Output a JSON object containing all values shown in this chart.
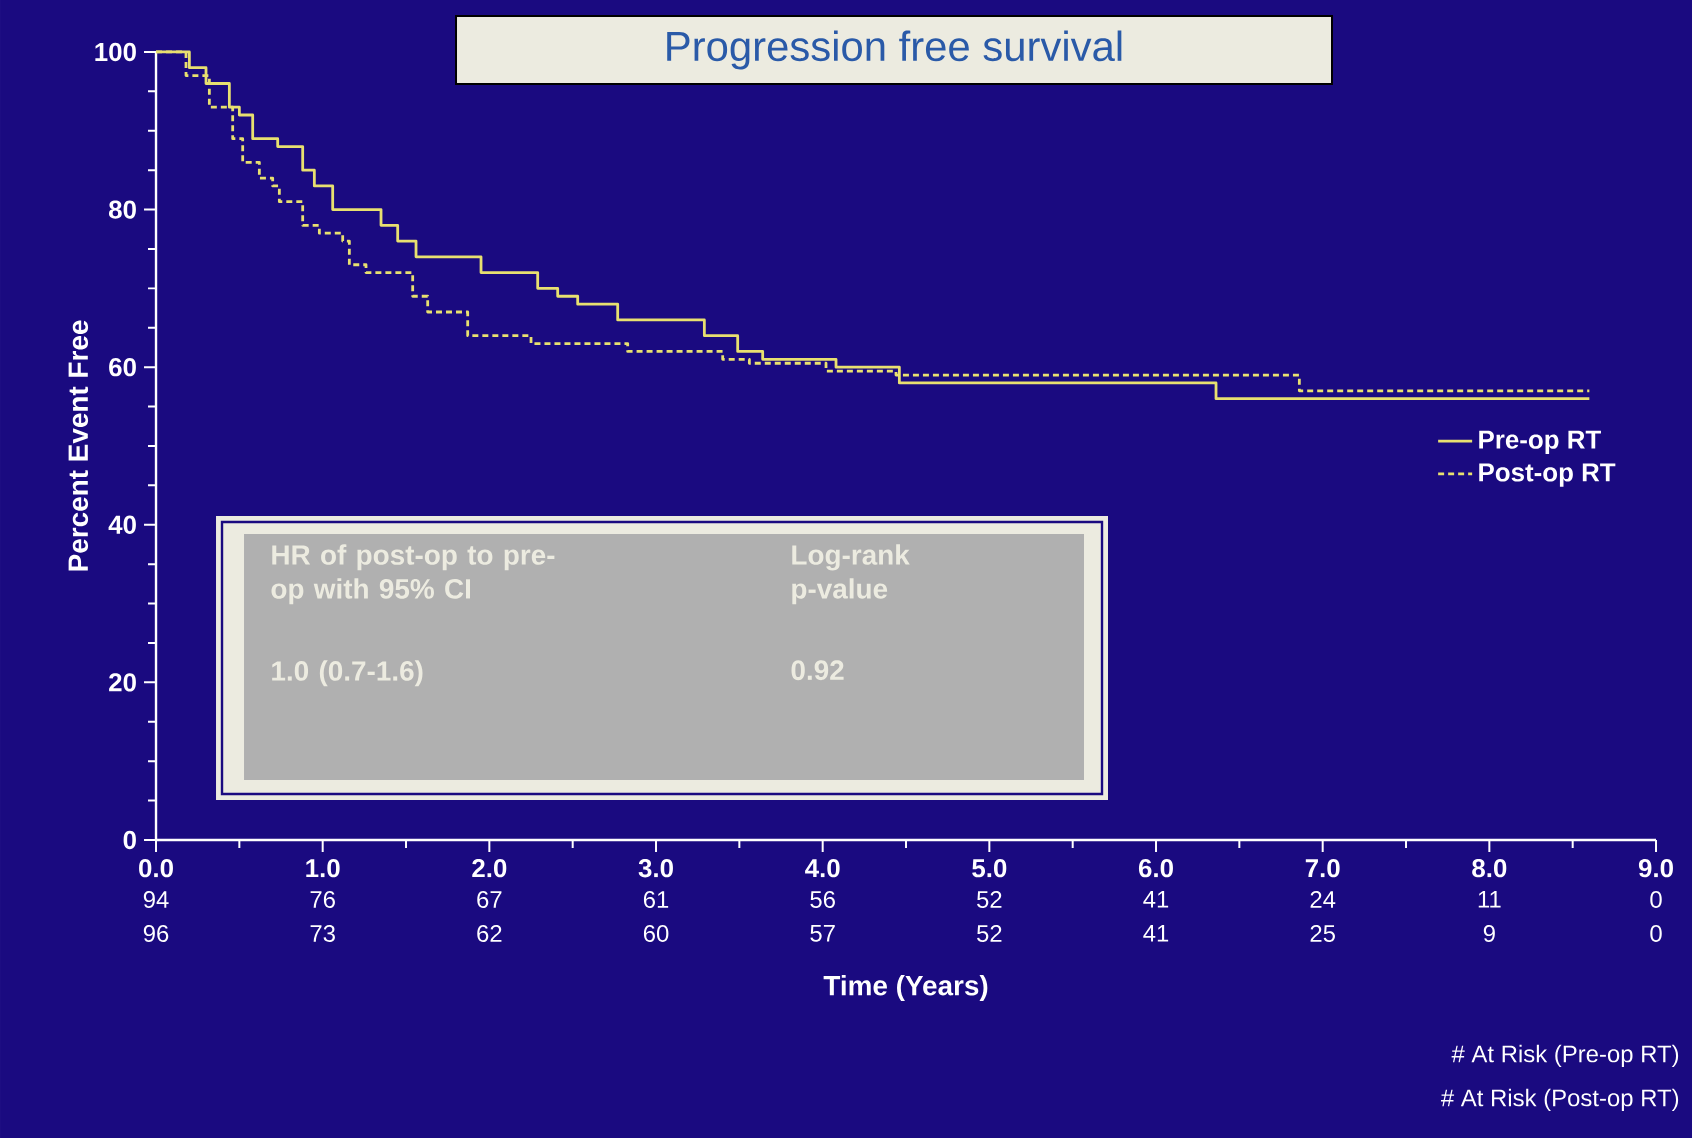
{
  "chart_data": {
    "type": "step",
    "title": "Progression free survival",
    "xlabel": "Time (Years)",
    "ylabel": "Percent Event Free",
    "xlim": [
      0,
      9
    ],
    "ylim": [
      0,
      100
    ],
    "xticks": [
      {
        "value": 0,
        "label": "0.0"
      },
      {
        "value": 1,
        "label": "1.0"
      },
      {
        "value": 2,
        "label": "2.0"
      },
      {
        "value": 3,
        "label": "3.0"
      },
      {
        "value": 4,
        "label": "4.0"
      },
      {
        "value": 5,
        "label": "5.0"
      },
      {
        "value": 6,
        "label": "6.0"
      },
      {
        "value": 7,
        "label": "7.0"
      },
      {
        "value": 8,
        "label": "8.0"
      },
      {
        "value": 9,
        "label": "9.0"
      }
    ],
    "yticks": [
      0,
      20,
      40,
      60,
      80,
      100
    ],
    "grid": false,
    "legend": "right",
    "series": [
      {
        "name": "Pre-op RT",
        "color": "#e8e070",
        "line_style": "solid",
        "x": [
          0,
          0.2,
          0.3,
          0.44,
          0.5,
          0.58,
          0.73,
          0.88,
          0.95,
          1.06,
          1.35,
          1.45,
          1.56,
          1.95,
          2.29,
          2.41,
          2.53,
          2.77,
          3.29,
          3.49,
          3.64,
          4.08,
          4.46,
          6.36,
          8.6
        ],
        "values": [
          100,
          98,
          96,
          93,
          92,
          89,
          88,
          85,
          83,
          80,
          78,
          76,
          74,
          72,
          70,
          69,
          68,
          66,
          64,
          62,
          61,
          60,
          58,
          56,
          56
        ]
      },
      {
        "name": "Post-op RT",
        "color": "#e8e070",
        "line_style": "dashed",
        "x": [
          0,
          0.18,
          0.32,
          0.46,
          0.52,
          0.62,
          0.7,
          0.74,
          0.88,
          0.98,
          1.12,
          1.16,
          1.26,
          1.54,
          1.63,
          1.87,
          2.25,
          2.83,
          3.4,
          3.56,
          4.02,
          4.44,
          6.86,
          8.6
        ],
        "values": [
          100,
          97,
          93,
          89,
          86,
          84,
          83,
          81,
          78,
          77,
          76,
          73,
          72,
          69,
          67,
          64,
          63,
          62,
          61,
          60.5,
          59.5,
          59,
          57,
          57
        ]
      }
    ],
    "annotations": [
      "HR of post-op to pre-op with 95% CI",
      "Log-rank p-value",
      "1.0 (0.7-1.6)",
      "0.92",
      "# At Risk (Pre-op RT)",
      "# At Risk (Post-op RT)",
      "94",
      "76",
      "67",
      "61",
      "56",
      "52",
      "41",
      "24",
      "11",
      "0",
      "96",
      "73",
      "62",
      "60",
      "57",
      "52",
      "41",
      "25",
      "9",
      "0"
    ]
  }
}
